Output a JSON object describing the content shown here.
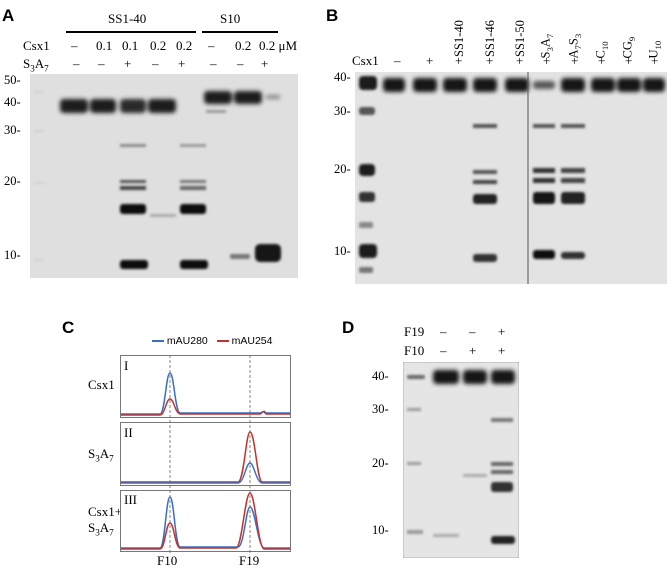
{
  "panelA": {
    "letter": "A",
    "group_ss140": "SS1-40",
    "group_s10": "S10",
    "csx1_label": "Csx1",
    "s3a7_label": "S",
    "s3a7_sub1": "3",
    "s3a7_mid": "A",
    "s3a7_sub2": "7",
    "csx1_values": [
      "–",
      "0.1",
      "0.1",
      "0.2",
      "0.2",
      "–",
      "0.2",
      "0.2 μM"
    ],
    "s3a7_values": [
      "–",
      "–",
      "+",
      "–",
      "+",
      "–",
      "–",
      "+"
    ],
    "markers": [
      "50-",
      "40-",
      "30-",
      "20-",
      "10-"
    ]
  },
  "panelB": {
    "letter": "B",
    "csx1_label": "Csx1",
    "csx1_values": [
      "–",
      "+",
      "+",
      "+",
      "+",
      "+",
      "+",
      "+",
      "+",
      "+"
    ],
    "lane_labels": [
      "SS1-40",
      "SS1-46",
      "SS1-50"
    ],
    "lane_labels_sub": [
      {
        "a": "S",
        "s1": "3",
        "b": "A",
        "s2": "7"
      },
      {
        "a": "A",
        "s1": "7",
        "b": "S",
        "s2": "3"
      },
      {
        "a": "C",
        "s1": "10",
        "b": "",
        "s2": ""
      },
      {
        "a": "CG",
        "s1": "9",
        "b": "",
        "s2": ""
      },
      {
        "a": "U",
        "s1": "10",
        "b": "",
        "s2": ""
      }
    ],
    "markers": [
      "40-",
      "30-",
      "20-",
      "10-"
    ]
  },
  "panelC": {
    "letter": "C",
    "legend": [
      {
        "name": "mAU280",
        "color": "#3a6fc4"
      },
      {
        "name": "mAU254",
        "color": "#c0332f"
      }
    ],
    "traces": [
      {
        "roman": "I",
        "label1": "Csx1",
        "label2": ""
      },
      {
        "roman": "II",
        "label1": "S3A7",
        "label2": ""
      },
      {
        "roman": "III",
        "label1": "Csx1+",
        "label2": "S3A7"
      }
    ],
    "xlabels": [
      "F10",
      "F19"
    ]
  },
  "panelD": {
    "letter": "D",
    "f19_label": "F19",
    "f10_label": "F10",
    "f19_values": [
      "–",
      "–",
      "+"
    ],
    "f10_values": [
      "–",
      "+",
      "+"
    ],
    "markers": [
      "40-",
      "30-",
      "20-",
      "10-"
    ]
  }
}
